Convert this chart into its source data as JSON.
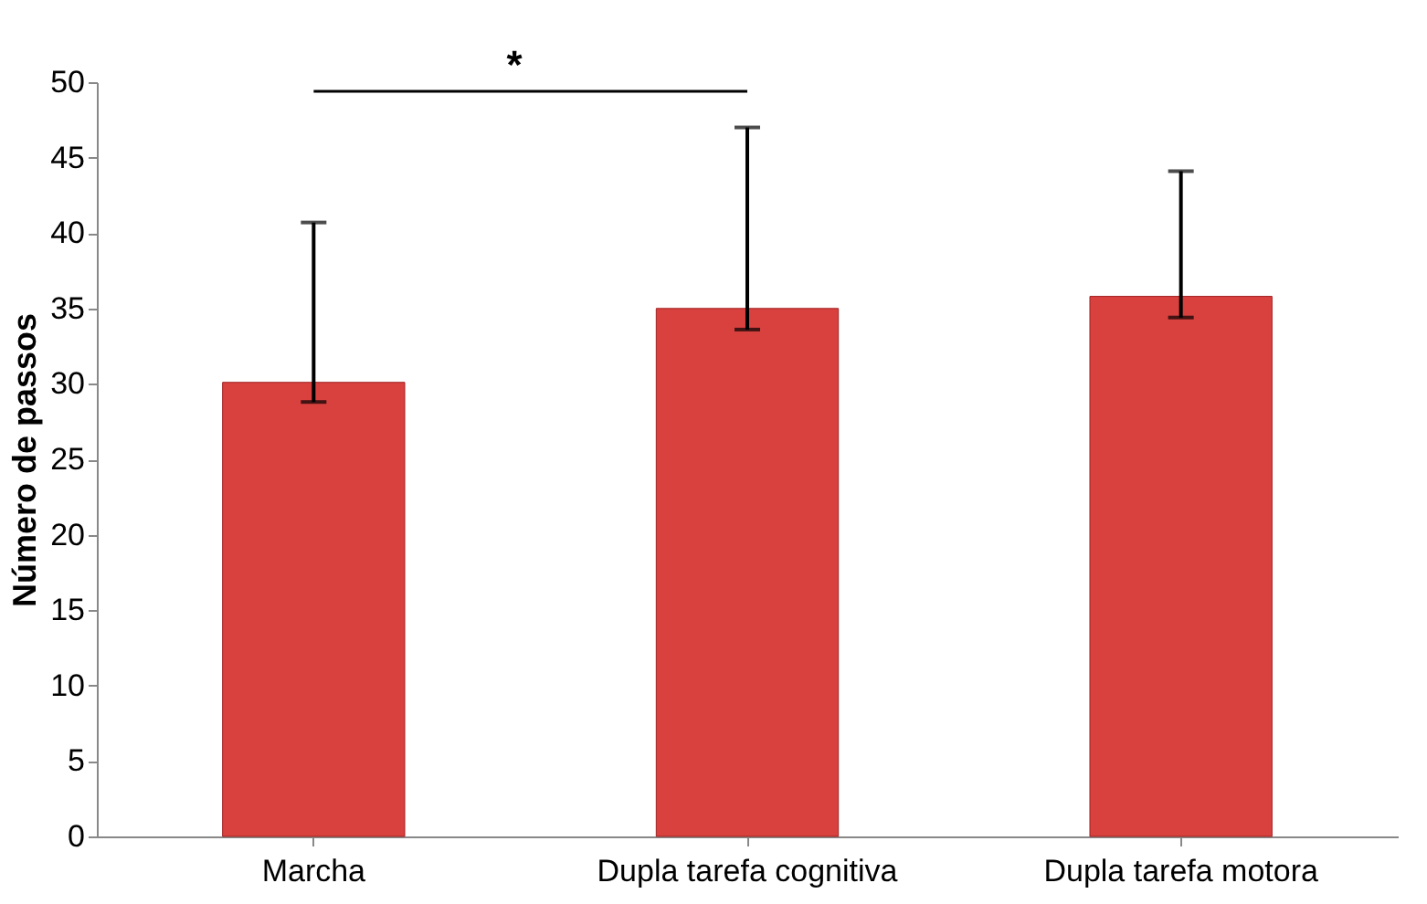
{
  "chart_data": {
    "type": "bar",
    "ylabel": "Número de passos",
    "categories": [
      "Marcha",
      "Dupla tarefa cognitiva",
      "Dupla tarefa motora"
    ],
    "values": [
      30.1,
      35.0,
      35.8
    ],
    "color": "#d9413f",
    "errors": [
      [
        28.8,
        40.7
      ],
      [
        33.6,
        47.0
      ],
      [
        34.4,
        44.1
      ]
    ],
    "ylim": [
      0,
      50
    ],
    "yticks": [
      0,
      5,
      10,
      15,
      20,
      25,
      30,
      35,
      40,
      45,
      50
    ],
    "grid": false,
    "annotations": [
      "*"
    ]
  }
}
